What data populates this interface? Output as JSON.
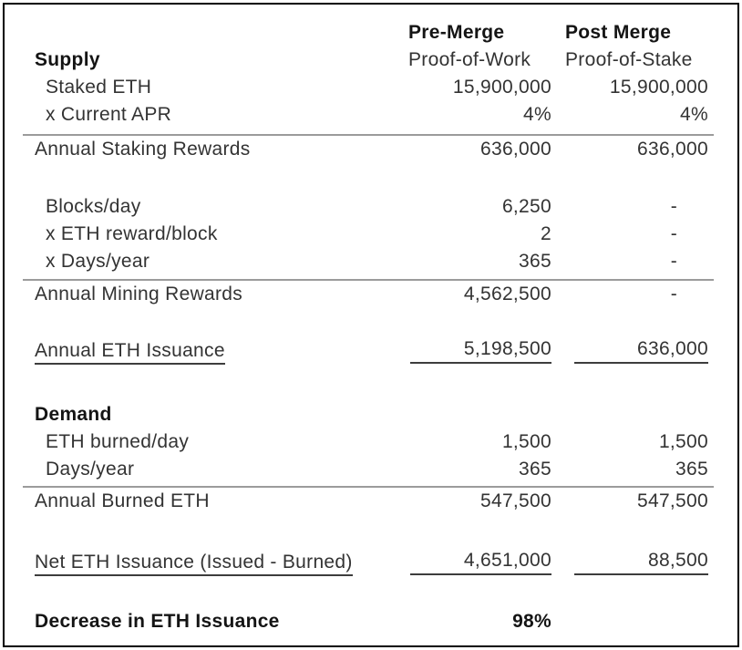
{
  "table": {
    "column_headers": {
      "pre": {
        "title": "Pre-Merge",
        "subtitle": "Proof-of-Work"
      },
      "post": {
        "title": "Post Merge",
        "subtitle": "Proof-of-Stake"
      }
    },
    "rows": [
      {
        "label": "",
        "pre": "Pre-Merge",
        "post": "Post Merge"
      },
      {
        "label": "Supply",
        "pre": "Proof-of-Work",
        "post": "Proof-of-Stake"
      },
      {
        "label": "Staked ETH",
        "pre": "15,900,000",
        "post": "15,900,000"
      },
      {
        "label": "x Current APR",
        "pre": "4%",
        "post": "4%"
      },
      {
        "label": "Annual Staking Rewards",
        "pre": "636,000",
        "post": "636,000"
      },
      {
        "label": "Blocks/day",
        "pre": "6,250",
        "post": "-"
      },
      {
        "label": "x ETH reward/block",
        "pre": "2",
        "post": "-"
      },
      {
        "label": "x Days/year",
        "pre": "365",
        "post": "-"
      },
      {
        "label": "Annual Mining Rewards",
        "pre": "4,562,500",
        "post": "-"
      },
      {
        "label": "Annual ETH Issuance",
        "pre": "5,198,500",
        "post": "636,000"
      },
      {
        "label": "Demand",
        "pre": "",
        "post": ""
      },
      {
        "label": "ETH burned/day",
        "pre": "1,500",
        "post": "1,500"
      },
      {
        "label": "Days/year",
        "pre": "365",
        "post": "365"
      },
      {
        "label": "Annual Burned ETH",
        "pre": "547,500",
        "post": "547,500"
      },
      {
        "label": "Net ETH Issuance (Issued - Burned)",
        "pre": "4,651,000",
        "post": "88,500"
      },
      {
        "label": "Decrease in ETH Issuance",
        "pre": "98%",
        "post": ""
      }
    ],
    "colors": {
      "text": "#333333",
      "bold_text": "#141414",
      "section_rule": "#9b9b9b",
      "total_underline": "#3d3d3d",
      "border": "#000000",
      "background": "#ffffff"
    }
  },
  "chart_data": {
    "type": "table",
    "columns": [
      "",
      "Pre-Merge Proof-of-Work",
      "Post Merge Proof-of-Stake"
    ],
    "sections": [
      "Supply",
      "Demand"
    ],
    "rows": [
      {
        "label": "Staked ETH",
        "pre": 15900000,
        "post": 15900000
      },
      {
        "label": "x Current APR",
        "pre": "4%",
        "post": "4%"
      },
      {
        "label": "Annual Staking Rewards",
        "pre": 636000,
        "post": 636000
      },
      {
        "label": "Blocks/day",
        "pre": 6250,
        "post": null
      },
      {
        "label": "x ETH reward/block",
        "pre": 2,
        "post": null
      },
      {
        "label": "x Days/year",
        "pre": 365,
        "post": null
      },
      {
        "label": "Annual Mining Rewards",
        "pre": 4562500,
        "post": null
      },
      {
        "label": "Annual ETH Issuance",
        "pre": 5198500,
        "post": 636000
      },
      {
        "label": "ETH burned/day",
        "pre": 1500,
        "post": 1500
      },
      {
        "label": "Days/year",
        "pre": 365,
        "post": 365
      },
      {
        "label": "Annual Burned ETH",
        "pre": 547500,
        "post": 547500
      },
      {
        "label": "Net ETH Issuance (Issued - Burned)",
        "pre": 4651000,
        "post": 88500
      },
      {
        "label": "Decrease in ETH Issuance",
        "pre": "98%",
        "post": null
      }
    ]
  }
}
